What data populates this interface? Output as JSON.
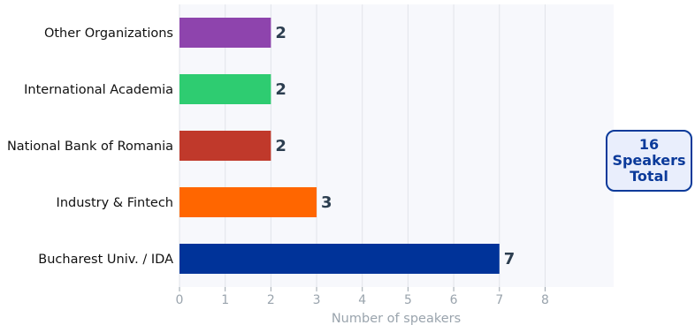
{
  "chart_data": {
    "type": "bar",
    "orientation": "horizontal",
    "categories": [
      "Bucharest Univ. / IDA",
      "Industry & Fintech",
      "National Bank of Romania",
      "International Academia",
      "Other Organizations"
    ],
    "values": [
      7,
      3,
      2,
      2,
      2
    ],
    "colors": [
      "#003399",
      "#ff6600",
      "#c0392b",
      "#2ecc71",
      "#8e44ad"
    ],
    "xlabel": "Number of speakers",
    "ylabel": "",
    "title": "",
    "xlim": [
      0,
      9.5
    ],
    "xticks": [
      0,
      1,
      2,
      3,
      4,
      5,
      6,
      7,
      8
    ],
    "grid": "vertical",
    "data_labels": true
  },
  "annotation": {
    "line1": "16",
    "line2": "Speakers",
    "line3": "Total"
  }
}
